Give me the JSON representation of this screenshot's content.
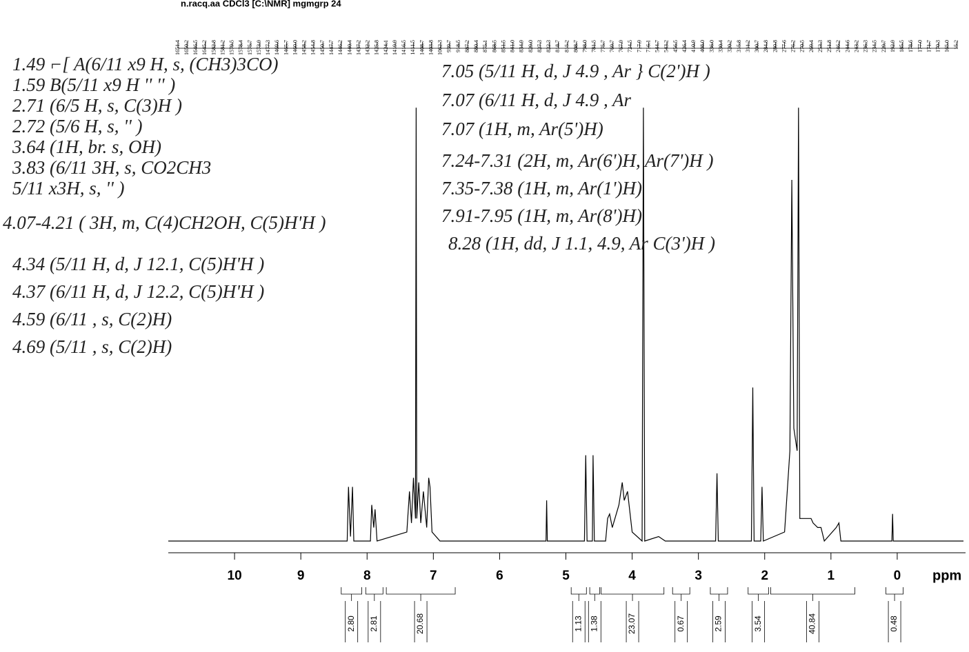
{
  "chart_data": {
    "type": "line",
    "title": "n.racq.aa CDCl3 [C:\\NMR] mgmgrp 24",
    "xlabel": "ppm",
    "color": "#000000",
    "xlim": [
      11,
      -1
    ],
    "xticks": [
      10,
      9,
      8,
      7,
      6,
      5,
      4,
      3,
      2,
      1,
      0
    ],
    "ylim": [
      0,
      100
    ],
    "x": [
      11,
      8.3,
      8.28,
      8.25,
      8.22,
      8.2,
      7.95,
      7.93,
      7.9,
      7.88,
      7.85,
      7.4,
      7.36,
      7.33,
      7.3,
      7.27,
      7.26,
      7.25,
      7.22,
      7.19,
      7.15,
      7.1,
      7.07,
      7.05,
      7.02,
      6.9,
      5.3,
      5.29,
      5.28,
      4.72,
      4.7,
      4.68,
      4.6,
      4.59,
      4.57,
      4.4,
      4.37,
      4.34,
      4.3,
      4.2,
      4.15,
      4.12,
      4.07,
      4.0,
      3.85,
      3.83,
      3.81,
      3.6,
      3.5,
      2.74,
      2.72,
      2.7,
      2.2,
      2.18,
      2.16,
      2.06,
      2.04,
      2.02,
      1.7,
      1.62,
      1.59,
      1.56,
      1.51,
      1.49,
      1.47,
      1.3,
      1.27,
      1.2,
      1.15,
      1.1,
      0.92,
      0.88,
      0.85,
      0.08,
      0.07,
      0.06,
      -1
    ],
    "values": [
      0,
      0,
      12,
      1,
      12,
      0,
      0,
      8,
      3,
      7,
      0,
      2,
      11,
      4,
      14,
      5,
      96,
      5,
      13,
      4,
      11,
      3,
      14,
      12,
      2,
      0,
      0,
      9,
      0,
      0,
      19,
      0,
      0,
      19,
      0,
      0,
      5,
      6,
      3,
      8,
      13,
      9,
      11,
      2,
      0,
      96,
      0,
      1,
      0,
      0,
      15,
      0,
      0,
      34,
      0,
      0,
      12,
      0,
      2,
      20,
      80,
      25,
      20,
      96,
      5,
      5,
      4,
      3,
      3,
      0,
      3,
      4,
      0,
      0,
      6,
      0,
      0
    ],
    "peaks": {
      "values": [
        1651.4,
        1650.2,
        1646.5,
        1645.2,
        1582.8,
        1581.2,
        1579.5,
        1578.4,
        1575.7,
        1573.9,
        1477.3,
        1469.6,
        1465.7,
        1460.0,
        1458.2,
        1454.8,
        1450.7,
        1447.7,
        1446.2,
        1440.4,
        1437.2,
        1432.2,
        1425.8,
        1424.1,
        1419.9,
        1416.5,
        1411.5,
        1408.7,
        1403.8,
        1062.3,
        939.7,
        918.5,
        887.2,
        880.4,
        875.1,
        868.5,
        851.5,
        841.0,
        834.9,
        829.0,
        827.3,
        822.3,
        818.7,
        815.2,
        808.7,
        798.0,
        781.5,
        775.7,
        769.7,
        767.9,
        724.5,
        717.9,
        716.1,
        544.7,
        543.2,
        456.5,
        426.4,
        410.9,
        408.0,
        336.0,
        330.4,
        320.2,
        315.8,
        311.2,
        300.7,
        284.8,
        280.8,
        277.6,
        276.2,
        270.5,
        269.4,
        253.3,
        251.8,
        246.2,
        244.6,
        243.2,
        236.3,
        234.5,
        229.7,
        192.9,
        185.5,
        178.6,
        177.0,
        171.7,
        170.3,
        165.0,
        15.2
      ],
      "value_labels": [
        "1651.4",
        "1650.2",
        "1646.5",
        "1645.2",
        "1582.8",
        "1581.2",
        "1579.5",
        "1578.4",
        "1575.7",
        "1573.9",
        "1477.3",
        "1469.6",
        "1465.7",
        "1460.0",
        "1458.2",
        "1454.8",
        "1450.7",
        "1447.7",
        "1446.2",
        "1440.4",
        "1437.2",
        "1432.2",
        "1425.8",
        "1424.1",
        "1419.9",
        "1416.5",
        "1411.5",
        "1408.7",
        "1403.8",
        "1062.3",
        "939.7",
        "918.5",
        "887.2",
        "880.4",
        "875.1",
        "868.5",
        "851.5",
        "841.0",
        "834.9",
        "829.0",
        "827.3",
        "822.3",
        "818.7",
        "815.2",
        "808.7",
        "798.0",
        "781.5",
        "775.7",
        "769.7",
        "767.9",
        "724.5",
        "717.9",
        "716.1",
        "544.7",
        "543.2",
        "456.5",
        "426.4",
        "410.9",
        "408.0",
        "336.0",
        "330.4",
        "320.2",
        "315.8",
        "311.2",
        "300.7",
        "284.8",
        "280.8",
        "277.6",
        "276.2",
        "270.5",
        "269.4",
        "253.3",
        "251.8",
        "246.2",
        "244.6",
        "243.2",
        "236.3",
        "234.5",
        "229.7",
        "192.9",
        "185.5",
        "178.6",
        "177.0",
        "171.7",
        "170.3",
        "165.0",
        "15.2"
      ]
    },
    "integrals": {
      "ranges": [
        [
          8.39,
          8.08
        ],
        [
          8.02,
          7.76
        ],
        [
          7.71,
          6.67
        ],
        [
          4.92,
          4.69
        ],
        [
          4.64,
          4.49
        ],
        [
          4.47,
          3.52
        ],
        [
          3.39,
          3.13
        ],
        [
          2.82,
          2.56
        ],
        [
          2.25,
          1.94
        ],
        [
          1.91,
          0.64
        ],
        [
          0.17,
          -0.09
        ]
      ],
      "values": [
        2.8,
        2.81,
        20.68,
        1.13,
        1.38,
        23.07,
        0.67,
        2.59,
        3.54,
        40.84,
        0.48
      ],
      "value_labels": [
        "2.80",
        "2.81",
        "20.68",
        "1.13",
        "1.38",
        "23.07",
        "0.67",
        "2.59",
        "3.54",
        "40.84",
        "0.48"
      ]
    }
  },
  "annotations": {
    "left": [
      "1.49  ⌐[ A(6/11 x9 H, s, (CH3)3CO)",
      "1.59      B(5/11 x9 H   ''       '' )",
      "2.71  (6/5 H, s, C(3)H )",
      "2.72  (5/6 H, s,  ''  )",
      "3.64  (1H, br. s, OH)",
      "3.83  (6/11 3H, s, CO2CH3",
      "         5/11 x3H, s,  ''      )",
      "4.07-4.21 ( 3H, m,  C(4)CH2OH, C(5)H'H )",
      "4.34  (5/11 H, d, J 12.1, C(5)H'H )",
      "4.37  (6/11 H, d, J 12.2, C(5)H'H )",
      "4.59  (6/11 , s, C(2)H)",
      "4.69  (5/11 , s, C(2)H)"
    ],
    "right": [
      "7.05  (5/11 H, d, J 4.9 , Ar } C(2')H )",
      "7.07  (6/11 H, d, J 4.9 , Ar",
      "7.07  (1H, m, Ar(5')H)",
      "7.24-7.31 (2H, m, Ar(6')H, Ar(7')H )",
      "7.35-7.38 (1H, m, Ar(1')H)",
      "7.91-7.95 (1H, m, Ar(8')H)",
      "8.28  (1H, dd, J 1.1, 4.9, Ar C(3')H )"
    ]
  }
}
